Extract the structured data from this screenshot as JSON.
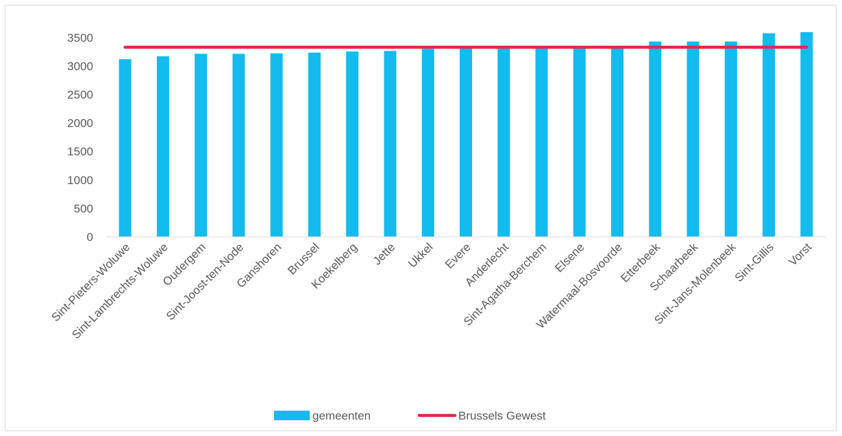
{
  "chart_data": {
    "type": "bar",
    "categories": [
      "Sint-Pieters-Woluwe",
      "Sint-Lambrechts-Woluwe",
      "Oudergem",
      "Sint-Joost-ten-Node",
      "Ganshoren",
      "Brussel",
      "Koekelberg",
      "Jette",
      "Ukkel",
      "Evere",
      "Anderlecht",
      "Sint-Agatha-Berchem",
      "Elsene",
      "Watermaal-Bosvoorde",
      "Etterbeek",
      "Schaarbeek",
      "Sint-Jans-Molenbeek",
      "Sint-Gillis",
      "Vorst"
    ],
    "series": [
      {
        "name": "gemeenten",
        "type": "bar",
        "color": "#13bbee",
        "values": [
          3120,
          3170,
          3215,
          3215,
          3220,
          3235,
          3255,
          3265,
          3300,
          3305,
          3310,
          3315,
          3320,
          3325,
          3430,
          3430,
          3430,
          3575,
          3595
        ]
      },
      {
        "name": "Brussels Gewest",
        "type": "line",
        "color": "#e0294f",
        "values": [
          3330,
          3330,
          3330,
          3330,
          3330,
          3330,
          3330,
          3330,
          3330,
          3330,
          3330,
          3330,
          3330,
          3330,
          3330,
          3330,
          3330,
          3330,
          3330
        ]
      }
    ],
    "yticks": [
      "0",
      "500",
      "1000",
      "1500",
      "2000",
      "2500",
      "3000",
      "3500"
    ],
    "ylim": [
      0,
      3750
    ],
    "grid": false,
    "legend_position": "bottom"
  }
}
